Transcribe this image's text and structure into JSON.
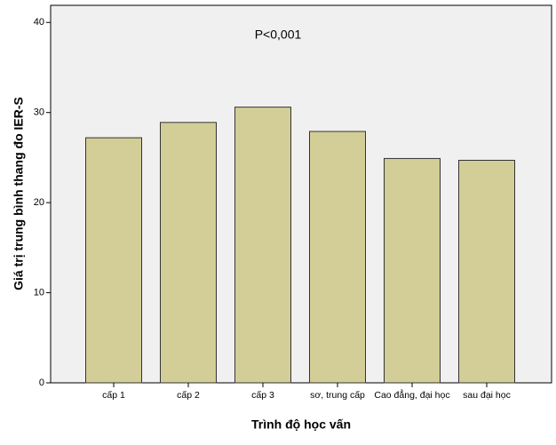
{
  "chart_data": {
    "type": "bar",
    "annotation": "P<0,001",
    "x_label": "Trình độ học vấn",
    "y_label": "Giá trị trung bình thang đo IER-S",
    "categories": [
      "cấp 1",
      "cấp 2",
      "cấp 3",
      "sơ, trung cấp",
      "Cao đẳng, đại học",
      "sau đại học"
    ],
    "values": [
      27.2,
      28.9,
      30.6,
      27.9,
      24.9,
      24.7
    ],
    "color": "#d3ce97",
    "ylim": [
      0,
      41.9
    ],
    "yticks": [
      0,
      10,
      20,
      30,
      40
    ],
    "grid": false
  }
}
